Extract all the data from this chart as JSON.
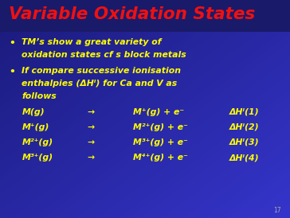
{
  "bg_color_dark": "#1a1a7a",
  "bg_color_bright": "#3535cc",
  "title": "Variable Oxidation States",
  "title_color": "#ee1111",
  "title_bg": "#1a1a6a",
  "bullet_color": "#ffff00",
  "bullet1_line1": "TM’s show a great variety of",
  "bullet1_line2": "oxidation states cf s block metals",
  "bullet2_line1": "If compare successive ionisation",
  "bullet2_line2": "enthalpies (ΔHᴵ) for Ca and V as",
  "bullet2_line3": "follows",
  "eq_left": [
    "M(g)",
    "M⁺(g)",
    "M²⁺(g)",
    "M³⁺(g)"
  ],
  "eq_arrow": [
    "→",
    "→",
    "→",
    "→"
  ],
  "eq_right": [
    "M⁺(g) + e⁻",
    "M²⁺(g) + e⁻",
    "M³⁺(g) + e⁻",
    "M⁴⁺(g) + e⁻"
  ],
  "eq_dh": [
    "ΔHᴵ(1)",
    "ΔHᴵ(2)",
    "ΔHᴵ(3)",
    "ΔHᴵ(4)"
  ],
  "eq_color": "#ffff00",
  "page_num": "17",
  "page_num_color": "#aaaaaa"
}
